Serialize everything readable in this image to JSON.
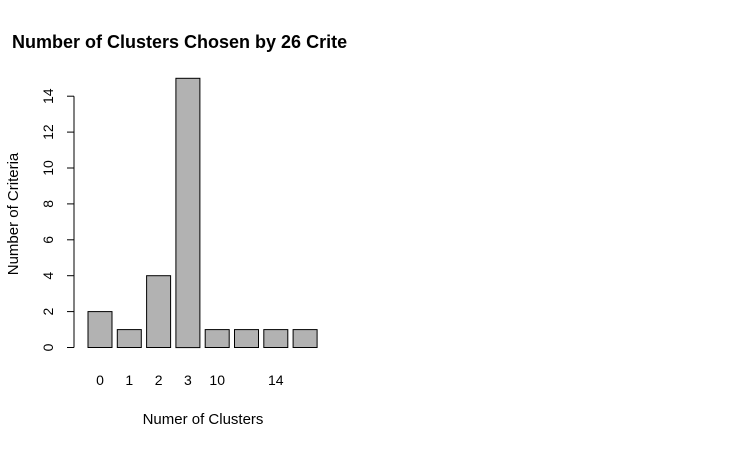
{
  "chart_data": {
    "type": "bar",
    "title": "Number of Clusters Chosen by 26 Crite",
    "xlabel": "Numer of Clusters",
    "ylabel": "Number of Criteria",
    "categories": [
      "0",
      "1",
      "2",
      "3",
      "10",
      "",
      "14",
      ""
    ],
    "values": [
      2,
      1,
      4,
      15,
      1,
      1,
      1,
      1
    ],
    "yticks": [
      "0",
      "2",
      "4",
      "6",
      "8",
      "10",
      "12",
      "14"
    ],
    "ylim": [
      0,
      15
    ],
    "grid": false,
    "bar_color": "#b2b2b2",
    "bar_stroke": "#000000"
  }
}
